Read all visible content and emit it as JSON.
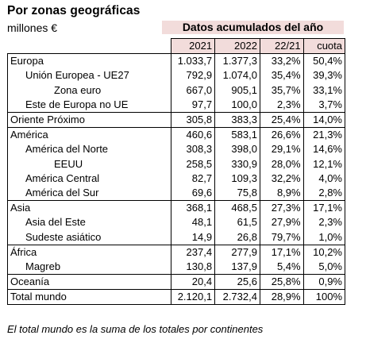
{
  "title": "Por zonas geográficas",
  "subtitle": "millones €",
  "header": "Datos acumulados del año",
  "columns": [
    "2021",
    "2022",
    "22/21",
    "cuota"
  ],
  "rows": [
    {
      "label": "Europa",
      "v2021": "1.033,7",
      "v2022": "1.377,3",
      "var": "33,2%",
      "cuota": "50,4%"
    },
    {
      "label": "Unión Europea - UE27",
      "v2021": "792,9",
      "v2022": "1.074,0",
      "var": "35,4%",
      "cuota": "39,3%"
    },
    {
      "label": "Zona euro",
      "v2021": "667,0",
      "v2022": "905,1",
      "var": "35,7%",
      "cuota": "33,1%"
    },
    {
      "label": "Este de Europa no UE",
      "v2021": "97,7",
      "v2022": "100,0",
      "var": "2,3%",
      "cuota": "3,7%"
    },
    {
      "label": "Oriente Próximo",
      "v2021": "305,8",
      "v2022": "383,3",
      "var": "25,4%",
      "cuota": "14,0%"
    },
    {
      "label": "América",
      "v2021": "460,6",
      "v2022": "583,1",
      "var": "26,6%",
      "cuota": "21,3%"
    },
    {
      "label": "América del Norte",
      "v2021": "308,3",
      "v2022": "398,0",
      "var": "29,1%",
      "cuota": "14,6%"
    },
    {
      "label": "EEUU",
      "v2021": "258,5",
      "v2022": "330,9",
      "var": "28,0%",
      "cuota": "12,1%"
    },
    {
      "label": "América Central",
      "v2021": "82,7",
      "v2022": "109,3",
      "var": "32,2%",
      "cuota": "4,0%"
    },
    {
      "label": "América del Sur",
      "v2021": "69,6",
      "v2022": "75,8",
      "var": "8,9%",
      "cuota": "2,8%"
    },
    {
      "label": "Asia",
      "v2021": "368,1",
      "v2022": "468,5",
      "var": "27,3%",
      "cuota": "17,1%"
    },
    {
      "label": "Asia del Este",
      "v2021": "48,1",
      "v2022": "61,5",
      "var": "27,9%",
      "cuota": "2,3%"
    },
    {
      "label": "Sudeste asiático",
      "v2021": "14,9",
      "v2022": "26,8",
      "var": "79,7%",
      "cuota": "1,0%"
    },
    {
      "label": "África",
      "v2021": "237,4",
      "v2022": "277,9",
      "var": "17,1%",
      "cuota": "10,2%"
    },
    {
      "label": "Magreb",
      "v2021": "130,8",
      "v2022": "137,9",
      "var": "5,4%",
      "cuota": "5,0%"
    },
    {
      "label": "Oceanía",
      "v2021": "20,4",
      "v2022": "25,6",
      "var": "25,8%",
      "cuota": "0,9%"
    },
    {
      "label": "Total mundo",
      "v2021": "2.120,1",
      "v2022": "2.732,4",
      "var": "28,9%",
      "cuota": "100%"
    }
  ],
  "footnote": "El total mundo es la suma de los totales por continentes"
}
